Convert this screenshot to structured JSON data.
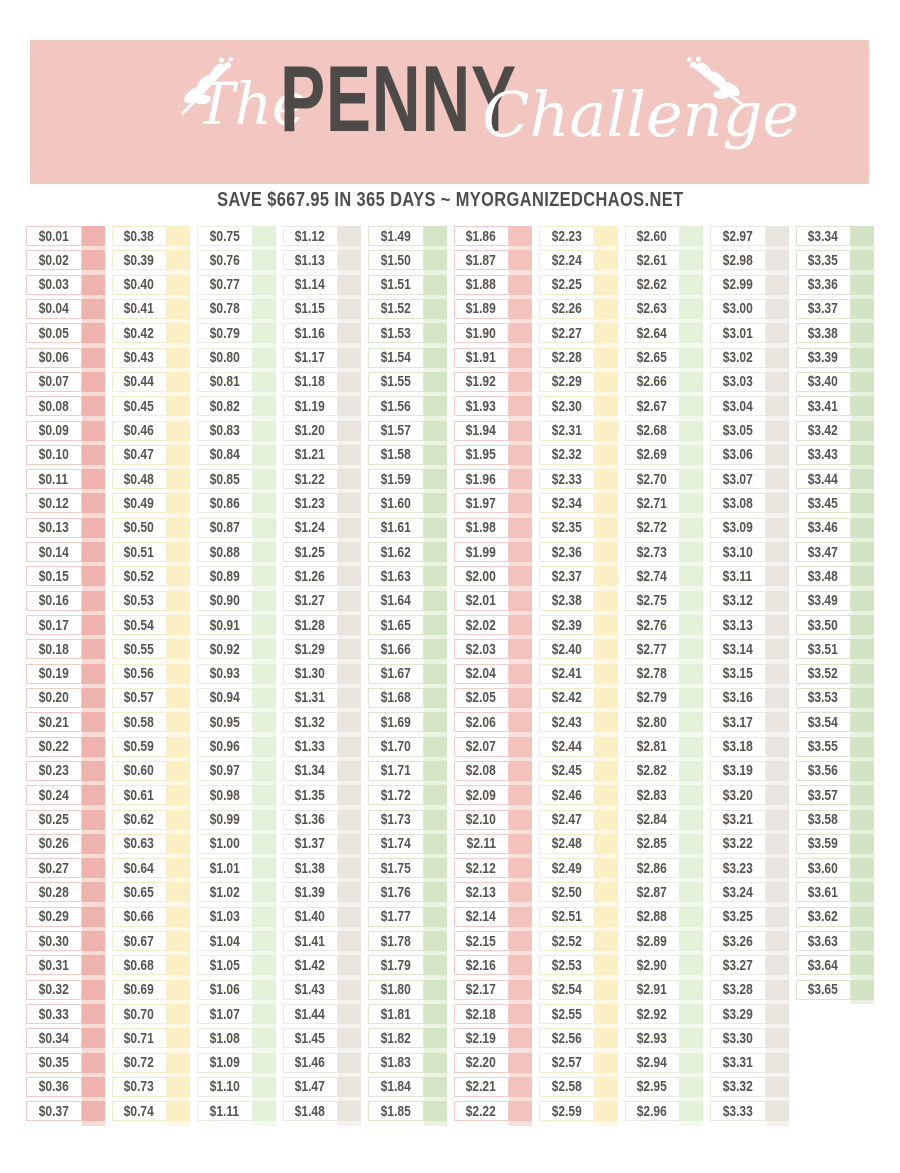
{
  "header": {
    "word_script_1": "The",
    "word_main": "PENNY",
    "word_script_2": "Challenge",
    "banner_color": "#f3c7c1",
    "title_color": "#4d4a47",
    "script_color": "#ffffff",
    "ornament_color": "#ffffff"
  },
  "subtitle": {
    "text": "SAVE $667.95 IN 365 DAYS ~ MYORGANIZEDCHAOS.NET",
    "color": "#4e4e50"
  },
  "table": {
    "amount_text_color": "#57534f",
    "columns": [
      {
        "checkbox_color": "#efb3ad",
        "separator_color": "#f7d9d5",
        "cell_border_color": "#f3cbc6",
        "values": [
          "$0.01",
          "$0.02",
          "$0.03",
          "$0.04",
          "$0.05",
          "$0.06",
          "$0.07",
          "$0.08",
          "$0.09",
          "$0.10",
          "$0.11",
          "$0.12",
          "$0.13",
          "$0.14",
          "$0.15",
          "$0.16",
          "$0.17",
          "$0.18",
          "$0.19",
          "$0.20",
          "$0.21",
          "$0.22",
          "$0.23",
          "$0.24",
          "$0.25",
          "$0.26",
          "$0.27",
          "$0.28",
          "$0.29",
          "$0.30",
          "$0.31",
          "$0.32",
          "$0.33",
          "$0.34",
          "$0.35",
          "$0.36",
          "$0.37"
        ]
      },
      {
        "checkbox_color": "#faf0c4",
        "separator_color": "#fdf8e3",
        "cell_border_color": "#f6ecca",
        "values": [
          "$0.38",
          "$0.39",
          "$0.40",
          "$0.41",
          "$0.42",
          "$0.43",
          "$0.44",
          "$0.45",
          "$0.46",
          "$0.47",
          "$0.48",
          "$0.49",
          "$0.50",
          "$0.51",
          "$0.52",
          "$0.53",
          "$0.54",
          "$0.55",
          "$0.56",
          "$0.57",
          "$0.58",
          "$0.59",
          "$0.60",
          "$0.61",
          "$0.62",
          "$0.63",
          "$0.64",
          "$0.65",
          "$0.66",
          "$0.67",
          "$0.68",
          "$0.69",
          "$0.70",
          "$0.71",
          "$0.72",
          "$0.73",
          "$0.74"
        ]
      },
      {
        "checkbox_color": "#e3f1da",
        "separator_color": "#f1f8ec",
        "cell_border_color": "#e6f1dd",
        "values": [
          "$0.75",
          "$0.76",
          "$0.77",
          "$0.78",
          "$0.79",
          "$0.80",
          "$0.81",
          "$0.82",
          "$0.83",
          "$0.84",
          "$0.85",
          "$0.86",
          "$0.87",
          "$0.88",
          "$0.89",
          "$0.90",
          "$0.91",
          "$0.92",
          "$0.93",
          "$0.94",
          "$0.95",
          "$0.96",
          "$0.97",
          "$0.98",
          "$0.99",
          "$1.00",
          "$1.01",
          "$1.02",
          "$1.03",
          "$1.04",
          "$1.05",
          "$1.06",
          "$1.07",
          "$1.08",
          "$1.09",
          "$1.10",
          "$1.11"
        ]
      },
      {
        "checkbox_color": "#e9e5de",
        "separator_color": "#f4f2ee",
        "cell_border_color": "#ece9e3",
        "values": [
          "$1.12",
          "$1.13",
          "$1.14",
          "$1.15",
          "$1.16",
          "$1.17",
          "$1.18",
          "$1.19",
          "$1.20",
          "$1.21",
          "$1.22",
          "$1.23",
          "$1.24",
          "$1.25",
          "$1.26",
          "$1.27",
          "$1.28",
          "$1.29",
          "$1.30",
          "$1.31",
          "$1.32",
          "$1.33",
          "$1.34",
          "$1.35",
          "$1.36",
          "$1.37",
          "$1.38",
          "$1.39",
          "$1.40",
          "$1.41",
          "$1.42",
          "$1.43",
          "$1.44",
          "$1.45",
          "$1.46",
          "$1.47",
          "$1.48"
        ]
      },
      {
        "checkbox_color": "#d4e5c6",
        "separator_color": "#eaf2e0",
        "cell_border_color": "#dbe9ce",
        "values": [
          "$1.49",
          "$1.50",
          "$1.51",
          "$1.52",
          "$1.53",
          "$1.54",
          "$1.55",
          "$1.56",
          "$1.57",
          "$1.58",
          "$1.59",
          "$1.60",
          "$1.61",
          "$1.62",
          "$1.63",
          "$1.64",
          "$1.65",
          "$1.66",
          "$1.67",
          "$1.68",
          "$1.69",
          "$1.70",
          "$1.71",
          "$1.72",
          "$1.73",
          "$1.74",
          "$1.75",
          "$1.76",
          "$1.77",
          "$1.78",
          "$1.79",
          "$1.80",
          "$1.81",
          "$1.82",
          "$1.83",
          "$1.84",
          "$1.85"
        ]
      },
      {
        "checkbox_color": "#f3c2bd",
        "separator_color": "#f9dfdc",
        "cell_border_color": "#f5ccc8",
        "values": [
          "$1.86",
          "$1.87",
          "$1.88",
          "$1.89",
          "$1.90",
          "$1.91",
          "$1.92",
          "$1.93",
          "$1.94",
          "$1.95",
          "$1.96",
          "$1.97",
          "$1.98",
          "$1.99",
          "$2.00",
          "$2.01",
          "$2.02",
          "$2.03",
          "$2.04",
          "$2.05",
          "$2.06",
          "$2.07",
          "$2.08",
          "$2.09",
          "$2.10",
          "$2.11",
          "$2.12",
          "$2.13",
          "$2.14",
          "$2.15",
          "$2.16",
          "$2.17",
          "$2.18",
          "$2.19",
          "$2.20",
          "$2.21",
          "$2.22"
        ]
      },
      {
        "checkbox_color": "#faf0c4",
        "separator_color": "#fdf8e3",
        "cell_border_color": "#f6ecca",
        "values": [
          "$2.23",
          "$2.24",
          "$2.25",
          "$2.26",
          "$2.27",
          "$2.28",
          "$2.29",
          "$2.30",
          "$2.31",
          "$2.32",
          "$2.33",
          "$2.34",
          "$2.35",
          "$2.36",
          "$2.37",
          "$2.38",
          "$2.39",
          "$2.40",
          "$2.41",
          "$2.42",
          "$2.43",
          "$2.44",
          "$2.45",
          "$2.46",
          "$2.47",
          "$2.48",
          "$2.49",
          "$2.50",
          "$2.51",
          "$2.52",
          "$2.53",
          "$2.54",
          "$2.55",
          "$2.56",
          "$2.57",
          "$2.58",
          "$2.59"
        ]
      },
      {
        "checkbox_color": "#e3f1da",
        "separator_color": "#f1f8ec",
        "cell_border_color": "#e6f1dd",
        "values": [
          "$2.60",
          "$2.61",
          "$2.62",
          "$2.63",
          "$2.64",
          "$2.65",
          "$2.66",
          "$2.67",
          "$2.68",
          "$2.69",
          "$2.70",
          "$2.71",
          "$2.72",
          "$2.73",
          "$2.74",
          "$2.75",
          "$2.76",
          "$2.77",
          "$2.78",
          "$2.79",
          "$2.80",
          "$2.81",
          "$2.82",
          "$2.83",
          "$2.84",
          "$2.85",
          "$2.86",
          "$2.87",
          "$2.88",
          "$2.89",
          "$2.90",
          "$2.91",
          "$2.92",
          "$2.93",
          "$2.94",
          "$2.95",
          "$2.96"
        ]
      },
      {
        "checkbox_color": "#e9e5de",
        "separator_color": "#f4f2ee",
        "cell_border_color": "#ece9e3",
        "values": [
          "$2.97",
          "$2.98",
          "$2.99",
          "$3.00",
          "$3.01",
          "$3.02",
          "$3.03",
          "$3.04",
          "$3.05",
          "$3.06",
          "$3.07",
          "$3.08",
          "$3.09",
          "$3.10",
          "$3.11",
          "$3.12",
          "$3.13",
          "$3.14",
          "$3.15",
          "$3.16",
          "$3.17",
          "$3.18",
          "$3.19",
          "$3.20",
          "$3.21",
          "$3.22",
          "$3.23",
          "$3.24",
          "$3.25",
          "$3.26",
          "$3.27",
          "$3.28",
          "$3.29",
          "$3.30",
          "$3.31",
          "$3.32",
          "$3.33"
        ]
      },
      {
        "checkbox_color": "#d2e4c4",
        "separator_color": "#e8f1de",
        "cell_border_color": "#d8e7ca",
        "values": [
          "$3.34",
          "$3.35",
          "$3.36",
          "$3.37",
          "$3.38",
          "$3.39",
          "$3.40",
          "$3.41",
          "$3.42",
          "$3.43",
          "$3.44",
          "$3.45",
          "$3.46",
          "$3.47",
          "$3.48",
          "$3.49",
          "$3.50",
          "$3.51",
          "$3.52",
          "$3.53",
          "$3.54",
          "$3.55",
          "$3.56",
          "$3.57",
          "$3.58",
          "$3.59",
          "$3.60",
          "$3.61",
          "$3.62",
          "$3.63",
          "$3.64",
          "$3.65"
        ]
      }
    ]
  }
}
